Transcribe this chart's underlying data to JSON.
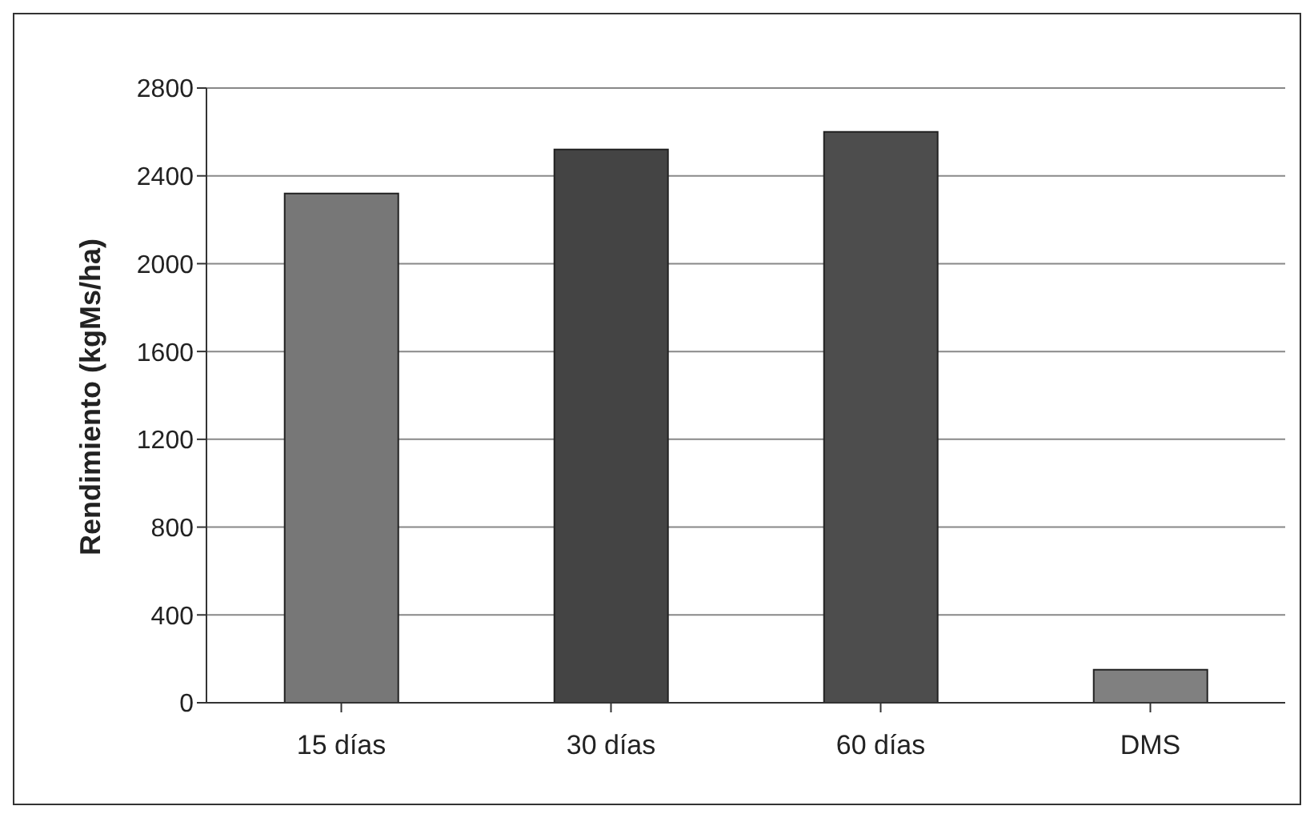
{
  "chart_data": {
    "type": "bar",
    "ylabel": "Rendimiento (kgMs/ha)",
    "categories": [
      "15 días",
      "30 días",
      "60 días",
      "DMS"
    ],
    "values": [
      2320,
      2520,
      2600,
      150
    ],
    "colors": [
      "#777777",
      "#444444",
      "#4d4d4d",
      "#808080"
    ],
    "ylim": [
      0,
      2800
    ],
    "yticks": [
      0,
      400,
      800,
      1200,
      1600,
      2000,
      2400,
      2800
    ],
    "grid": "y"
  }
}
